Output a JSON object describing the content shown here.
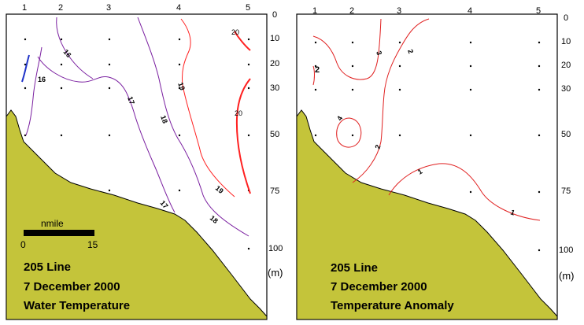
{
  "chart_data": [
    {
      "type": "contour",
      "panel": "left",
      "caption": [
        "205 Line",
        "7 December 2000",
        "Water Temperature"
      ],
      "stations": [
        "1",
        "2",
        "3",
        "4",
        "5"
      ],
      "depths": [
        0,
        10,
        20,
        30,
        50,
        75,
        100
      ],
      "depth_unit": "(m)",
      "scale_bar": {
        "label": "nmile",
        "start": "0",
        "end": "15"
      },
      "contours": [
        {
          "label": "16",
          "color": "#7a1fa0"
        },
        {
          "label": "16",
          "color": "#1f33c8"
        },
        {
          "label": "16",
          "color": "#7a1fa0"
        },
        {
          "label": "17",
          "color": "#7a1fa0"
        },
        {
          "label": "17",
          "color": "#7a1fa0"
        },
        {
          "label": "18",
          "color": "#7a1fa0"
        },
        {
          "label": "18",
          "color": "#7a1fa0"
        },
        {
          "label": "19",
          "color": "#ff2020"
        },
        {
          "label": "19",
          "color": "#ff2020"
        },
        {
          "label": "20",
          "color": "#ff2020"
        },
        {
          "label": "20",
          "color": "#ff2020"
        }
      ]
    },
    {
      "type": "contour",
      "panel": "right",
      "caption": [
        "205 Line",
        "7 December 2000",
        "Temperature Anomaly"
      ],
      "stations": [
        "1",
        "2",
        "3",
        "4",
        "5"
      ],
      "depths": [
        0,
        10,
        20,
        30,
        50,
        75,
        100
      ],
      "depth_unit": "(m)",
      "contours": [
        {
          "label": "2",
          "color": "#e02020"
        },
        {
          "label": "3",
          "color": "#e02020"
        },
        {
          "label": "2",
          "color": "#e02020"
        },
        {
          "label": "4",
          "color": "#e02020"
        },
        {
          "label": "2",
          "color": "#e02020"
        },
        {
          "label": "1",
          "color": "#e02020"
        },
        {
          "label": "1",
          "color": "#e02020"
        }
      ]
    }
  ],
  "colors": {
    "land": "#c4c43a",
    "isotherm_cold": "#7a1fa0",
    "isotherm_coldest": "#1f33c8",
    "isotherm_warm": "#ff2020",
    "anomaly": "#e02020"
  }
}
